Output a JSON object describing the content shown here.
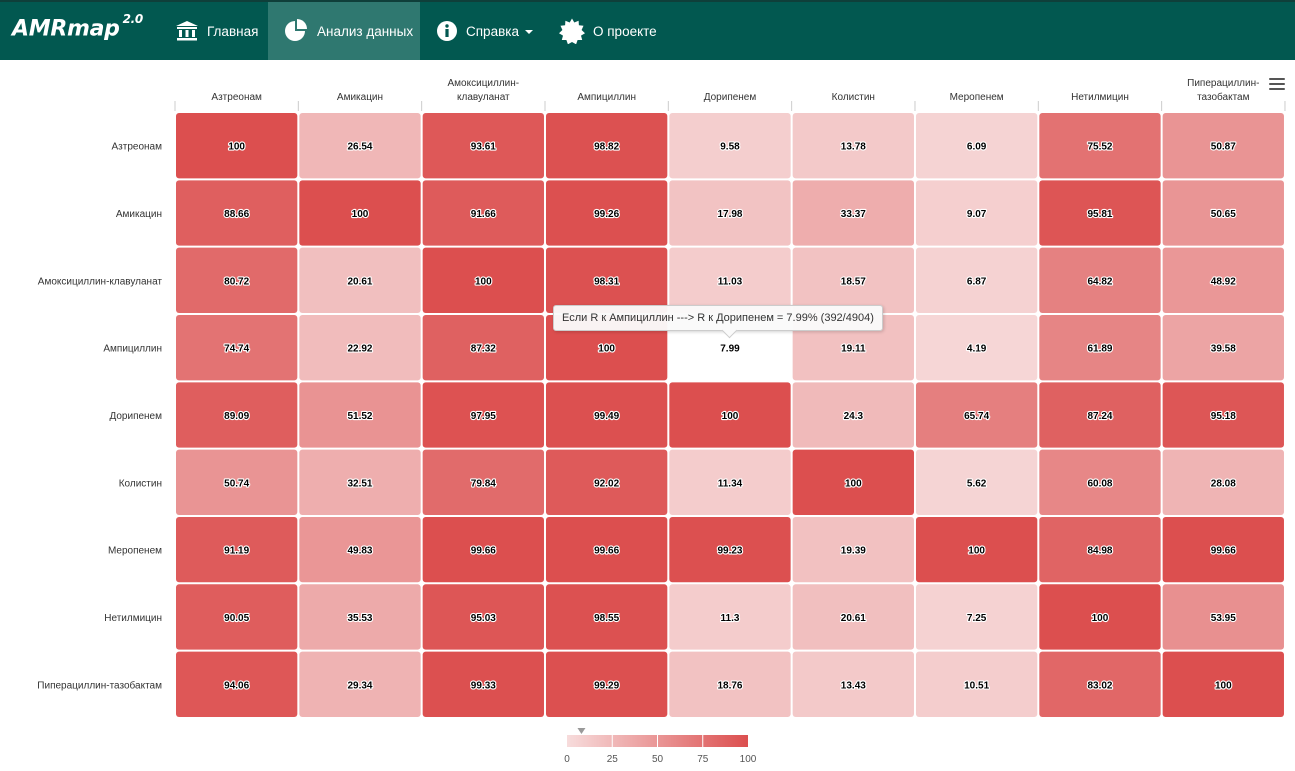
{
  "navbar": {
    "brand": "AMRmap",
    "brand_version": "2.0",
    "items": [
      {
        "label": "Главная",
        "icon": "bank-icon",
        "active": false
      },
      {
        "label": "Анализ данных",
        "icon": "pie-chart-icon",
        "active": true
      },
      {
        "label": "Справка",
        "icon": "info-icon",
        "active": false,
        "dropdown": true
      },
      {
        "label": "О проекте",
        "icon": "certificate-icon",
        "active": false
      }
    ],
    "colors": {
      "background": "#025850",
      "active": "#2f7870",
      "text": "#ffffff"
    }
  },
  "tooltip": {
    "text": "Если R к Ампициллин ---> R к Дорипенем = 7.99% (392/4904)"
  },
  "chart_data": {
    "type": "heatmap",
    "x_categories": [
      "Азтреонам",
      "Амикацин",
      "Амоксициллин-клавуланат",
      "Ампициллин",
      "Дорипенем",
      "Колистин",
      "Меропенем",
      "Нетилмицин",
      "Пиперациллин-тазобактам"
    ],
    "x_labels_display": [
      [
        "Азтреонам"
      ],
      [
        "Амикацин"
      ],
      [
        "Амоксициллин-",
        "клавуланат"
      ],
      [
        "Ампициллин"
      ],
      [
        "Дорипенем"
      ],
      [
        "Колистин"
      ],
      [
        "Меропенем"
      ],
      [
        "Нетилмицин"
      ],
      [
        "Пиперациллин-",
        "тазобактам"
      ]
    ],
    "y_categories": [
      "Азтреонам",
      "Амикацин",
      "Амоксициллин-клавуланат",
      "Ампициллин",
      "Дорипенем",
      "Колистин",
      "Меропенем",
      "Нетилмицин",
      "Пиперациллин-тазобактам"
    ],
    "values": [
      [
        100,
        26.54,
        93.61,
        98.82,
        9.58,
        13.78,
        6.09,
        75.52,
        50.87
      ],
      [
        88.66,
        100,
        91.66,
        99.26,
        17.98,
        33.37,
        9.07,
        95.81,
        50.65
      ],
      [
        80.72,
        20.61,
        100,
        98.31,
        11.03,
        18.57,
        6.87,
        64.82,
        48.92
      ],
      [
        74.74,
        22.92,
        87.32,
        100,
        7.99,
        19.11,
        4.19,
        61.89,
        39.58
      ],
      [
        89.09,
        51.52,
        97.95,
        99.49,
        100,
        24.3,
        65.74,
        87.24,
        95.18
      ],
      [
        50.74,
        32.51,
        79.84,
        92.02,
        11.34,
        100,
        5.62,
        60.08,
        28.08
      ],
      [
        91.19,
        49.83,
        99.66,
        99.66,
        99.23,
        19.39,
        100,
        84.98,
        99.66
      ],
      [
        90.05,
        35.53,
        95.03,
        98.55,
        11.3,
        20.61,
        7.25,
        100,
        53.95
      ],
      [
        94.06,
        29.34,
        99.33,
        99.29,
        18.76,
        13.43,
        10.51,
        83.02,
        100
      ]
    ],
    "highlighted_cell": {
      "row": 3,
      "col": 4
    },
    "color_axis": {
      "min": 0,
      "max": 100,
      "min_color": "#f7dcdc",
      "max_color": "#dc4f4f",
      "ticks": [
        0,
        25,
        50,
        75,
        100
      ]
    },
    "legend_position": "bottom-center",
    "title": "",
    "xlabel": "",
    "ylabel": ""
  }
}
